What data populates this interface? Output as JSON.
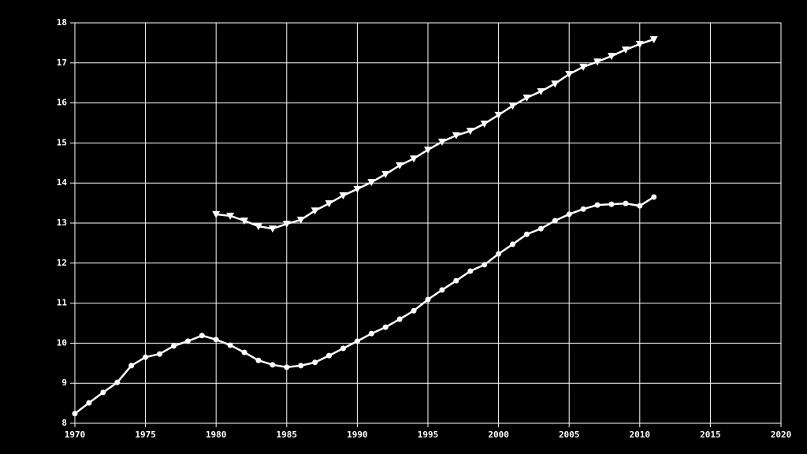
{
  "chart_data": {
    "type": "line",
    "x": [
      1970,
      1971,
      1972,
      1973,
      1974,
      1975,
      1976,
      1977,
      1978,
      1979,
      1980,
      1981,
      1982,
      1983,
      1984,
      1985,
      1986,
      1987,
      1988,
      1989,
      1990,
      1991,
      1992,
      1993,
      1994,
      1995,
      1996,
      1997,
      1998,
      1999,
      2000,
      2001,
      2002,
      2003,
      2004,
      2005,
      2006,
      2007,
      2008,
      2009,
      2010,
      2011
    ],
    "series": [
      {
        "color": "#ffffff",
        "marker": "circle",
        "values": [
          8.24,
          8.51,
          8.77,
          9.02,
          9.44,
          9.65,
          9.73,
          9.93,
          10.05,
          10.19,
          10.09,
          9.95,
          9.77,
          9.57,
          9.46,
          9.4,
          9.44,
          9.52,
          9.69,
          9.87,
          10.05,
          10.24,
          10.4,
          10.6,
          10.81,
          11.09,
          11.33,
          11.56,
          11.8,
          11.96,
          12.23,
          12.47,
          12.72,
          12.86,
          13.06,
          13.22,
          13.35,
          13.45,
          13.47,
          13.49,
          13.43,
          13.65
        ]
      },
      {
        "color": "#ffffff",
        "marker": "triangle-down",
        "values": [
          null,
          null,
          null,
          null,
          null,
          null,
          null,
          null,
          null,
          null,
          13.22,
          13.18,
          13.06,
          12.92,
          12.86,
          12.98,
          13.08,
          13.31,
          13.49,
          13.69,
          13.85,
          14.02,
          14.22,
          14.44,
          14.61,
          14.83,
          15.03,
          15.19,
          15.3,
          15.48,
          15.7,
          15.93,
          16.13,
          16.29,
          16.48,
          16.72,
          16.9,
          17.03,
          17.17,
          17.33,
          17.47,
          17.59
        ]
      }
    ],
    "xlim": [
      1970,
      2020
    ],
    "xticks": [
      1970,
      1975,
      1980,
      1985,
      1990,
      1995,
      2000,
      2005,
      2010,
      2015,
      2020
    ],
    "ylim": [
      8,
      18
    ],
    "yticks": [
      8,
      9,
      10,
      11,
      12,
      13,
      14,
      15,
      16,
      17,
      18
    ],
    "grid": true,
    "background": "#000000"
  }
}
